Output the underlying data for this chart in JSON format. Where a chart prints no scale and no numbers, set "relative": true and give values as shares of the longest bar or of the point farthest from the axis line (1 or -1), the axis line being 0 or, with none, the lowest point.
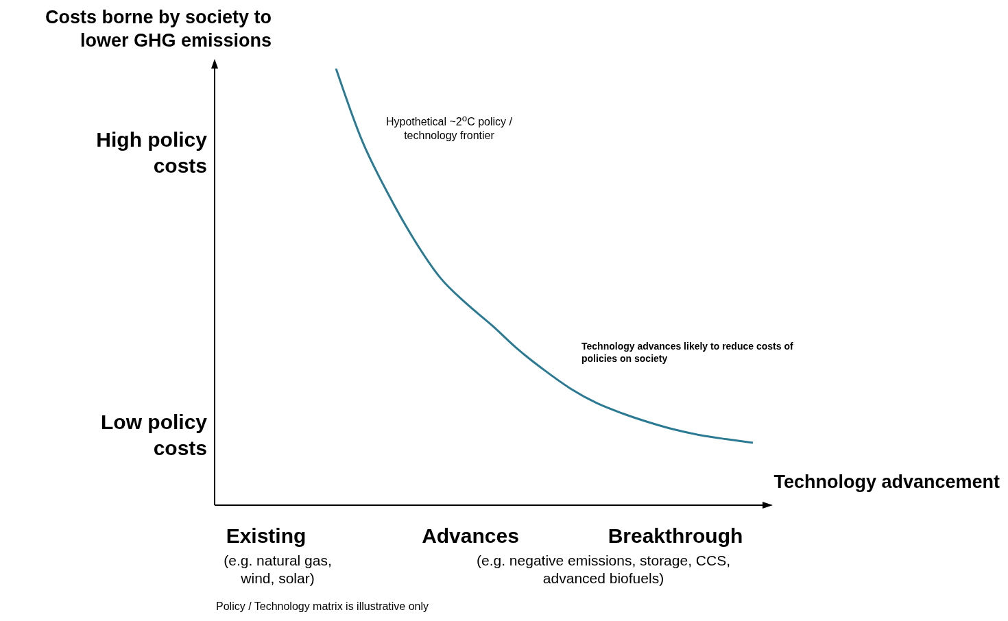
{
  "chart_data": {
    "type": "line",
    "relative": true,
    "ylabel": "Costs borne by society to lower GHG emissions",
    "xlabel": "Technology advancement",
    "categories": [
      null,
      null,
      null,
      null,
      null,
      null,
      null,
      null,
      null,
      null,
      null,
      null,
      null,
      null,
      null,
      null,
      null
    ],
    "series": [
      {
        "color": "#2b7a93",
        "values": [
          1,
          0.835,
          0.713,
          0.608,
          0.521,
          0.462,
          0.411,
          0.356,
          0.309,
          0.267,
          0.234,
          0.21,
          0.19,
          0.173,
          0.16,
          0.151,
          0.143
        ]
      }
    ],
    "annotations": [
      "Hypothetical ~2$^{o}$C policy / technology frontier",
      "Technology advances likely to reduce costs of policies on society",
      "High policy costs",
      "Low policy costs",
      "Existing",
      "(e.g. natural gas, wind, solar)",
      "Advances",
      "Breakthrough",
      "(e.g. negative emissions, storage, CCS, advanced biofuels)",
      "Policy / Technology matrix is illustrative only"
    ],
    "marker": "none",
    "line_style": "solid",
    "grid": false
  }
}
